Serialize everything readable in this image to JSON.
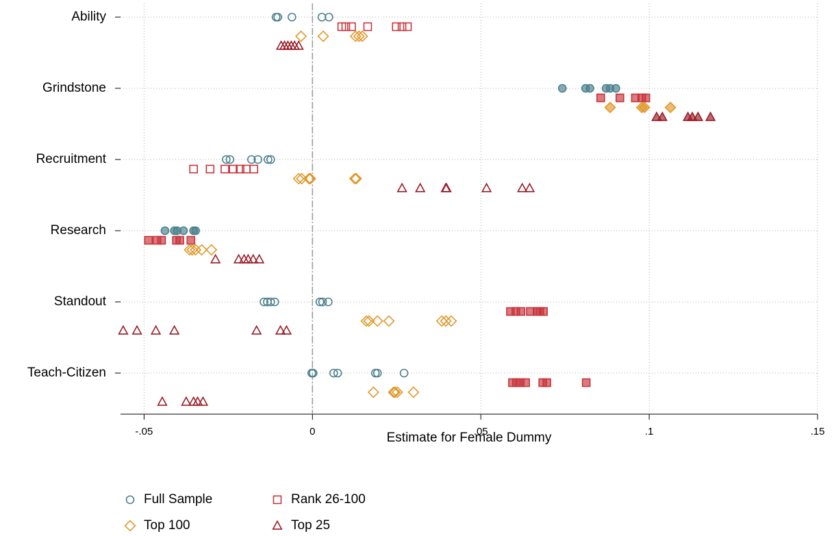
{
  "chart_data": {
    "type": "dot",
    "xlabel": "Estimate for Female Dummy",
    "categories": [
      "Ability",
      "Grindstone",
      "Recruitment",
      "Research",
      "Standout",
      "Teach-Citizen"
    ],
    "xlim": [
      -0.057,
      0.15
    ],
    "xticks": [
      {
        "value": -0.05,
        "label": "-.05"
      },
      0,
      {
        "value": 0.05,
        "label": ".05"
      },
      {
        "value": 0.1,
        "label": ".1"
      },
      {
        "value": 0.15,
        "label": ".15"
      }
    ],
    "grid": true,
    "series": [
      {
        "name": "Full Sample",
        "color": "#4a7f8c",
        "marker": "circle",
        "filled": [
          false,
          true,
          false,
          true,
          false,
          false
        ],
        "values": [
          [
            -0.0108,
            -0.0103,
            -0.0061,
            0.0028,
            0.0049
          ],
          [
            0.0742,
            0.0811,
            0.0824,
            0.0872,
            0.0884,
            0.0901
          ],
          [
            -0.0256,
            -0.0245,
            -0.0181,
            -0.0162,
            -0.0132,
            -0.0124
          ],
          [
            -0.0438,
            -0.041,
            -0.0402,
            -0.0383,
            -0.0353,
            -0.0347
          ],
          [
            -0.0144,
            -0.0134,
            -0.0124,
            -0.0112,
            0.0022,
            0.003,
            0.0047
          ],
          [
            -0.0002,
            0.0002,
            0.0063,
            0.0075,
            0.0187,
            0.0193,
            0.0272
          ]
        ]
      },
      {
        "name": "Rank 26-100",
        "color": "#c8343c",
        "marker": "square",
        "filled": [
          false,
          true,
          false,
          true,
          true,
          true
        ],
        "values": [
          [
            0.0087,
            0.0099,
            0.0116,
            0.0164,
            0.0249,
            0.0266,
            0.0282
          ],
          [
            0.0856,
            0.0913,
            0.0959,
            0.0978,
            0.099
          ],
          [
            -0.0353,
            -0.0304,
            -0.026,
            -0.0235,
            -0.0215,
            -0.0197,
            -0.0174
          ],
          [
            -0.0487,
            -0.0462,
            -0.0448,
            -0.0404,
            -0.0394,
            -0.0361
          ],
          [
            0.0588,
            0.0604,
            0.0619,
            0.0647,
            0.0667,
            0.0675,
            0.0686
          ],
          [
            0.0594,
            0.0606,
            0.0617,
            0.0633,
            0.0684,
            0.0696,
            0.0813
          ]
        ]
      },
      {
        "name": "Top 100",
        "color": "#e0982a",
        "marker": "diamond",
        "filled": [
          false,
          true,
          false,
          false,
          false,
          false
        ],
        "values": [
          [
            -0.0034,
            0.0032,
            0.0128,
            0.0138,
            0.0148
          ],
          [
            0.0884,
            0.0978,
            0.0986,
            0.1063
          ],
          [
            -0.0041,
            -0.0032,
            -0.001,
            -0.0006,
            0.0126,
            0.013
          ],
          [
            -0.0365,
            -0.0357,
            -0.0347,
            -0.0329,
            -0.03
          ],
          [
            0.016,
            0.0168,
            0.0193,
            0.0227,
            0.0384,
            0.0396,
            0.0412
          ],
          [
            0.0181,
            0.0241,
            0.0245,
            0.0252,
            0.03
          ]
        ]
      },
      {
        "name": "Top 25",
        "color": "#9b1b26",
        "marker": "triangle",
        "filled": [
          false,
          true,
          false,
          false,
          false,
          false
        ],
        "values": [
          [
            -0.0093,
            -0.0083,
            -0.0073,
            -0.0063,
            -0.0053,
            -0.0041
          ],
          [
            0.1022,
            0.1039,
            0.1115,
            0.1128,
            0.1145,
            0.1182
          ],
          [
            0.0266,
            0.032,
            0.0396,
            0.0398,
            0.0517,
            0.0623,
            0.0645
          ],
          [
            -0.0288,
            -0.0219,
            -0.0203,
            -0.0191,
            -0.0176,
            -0.0158
          ],
          [
            -0.0562,
            -0.0521,
            -0.0465,
            -0.041,
            -0.0166,
            -0.0095,
            -0.0077
          ],
          [
            -0.0446,
            -0.0375,
            -0.0353,
            -0.0341,
            -0.0325
          ]
        ]
      }
    ]
  }
}
